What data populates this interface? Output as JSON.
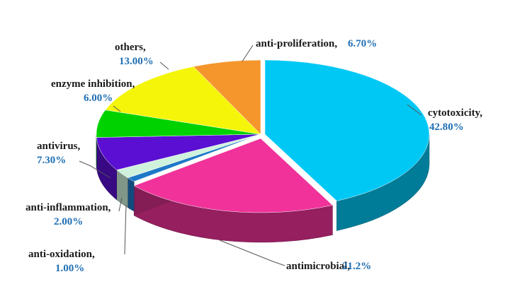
{
  "chart_data": {
    "type": "pie",
    "style": "3d-exploded",
    "legend": "none",
    "slices": [
      {
        "key": "cytotoxicity",
        "label": "cytotoxicity,",
        "value_label": "42.80%",
        "value": 42.8,
        "color": "#00C8F5"
      },
      {
        "key": "antimicrobial",
        "label": "antimicrobial,",
        "value_label": "21.2%",
        "value": 21.2,
        "color": "#F0329A"
      },
      {
        "key": "anti_oxidation",
        "label": "anti-oxidation,",
        "value_label": "1.00%",
        "value": 1.0,
        "color": "#1E78C8"
      },
      {
        "key": "anti_inflammation",
        "label": "anti-inflammation,",
        "value_label": "2.00%",
        "value": 2.0,
        "color": "#CFF2DC"
      },
      {
        "key": "antivirus",
        "label": "antivirus,",
        "value_label": "7.30%",
        "value": 7.3,
        "color": "#5A0FD2"
      },
      {
        "key": "enzyme_inhibition",
        "label": "enzyme inhibition,",
        "value_label": "6.00%",
        "value": 6.0,
        "color": "#00D200"
      },
      {
        "key": "others",
        "label": "others,",
        "value_label": "13.00%",
        "value": 13.0,
        "color": "#F5F50A"
      },
      {
        "key": "anti_proliferation",
        "label": "anti-proliferation,",
        "value_label": "6.70%",
        "value": 6.7,
        "color": "#F5962D"
      }
    ]
  }
}
